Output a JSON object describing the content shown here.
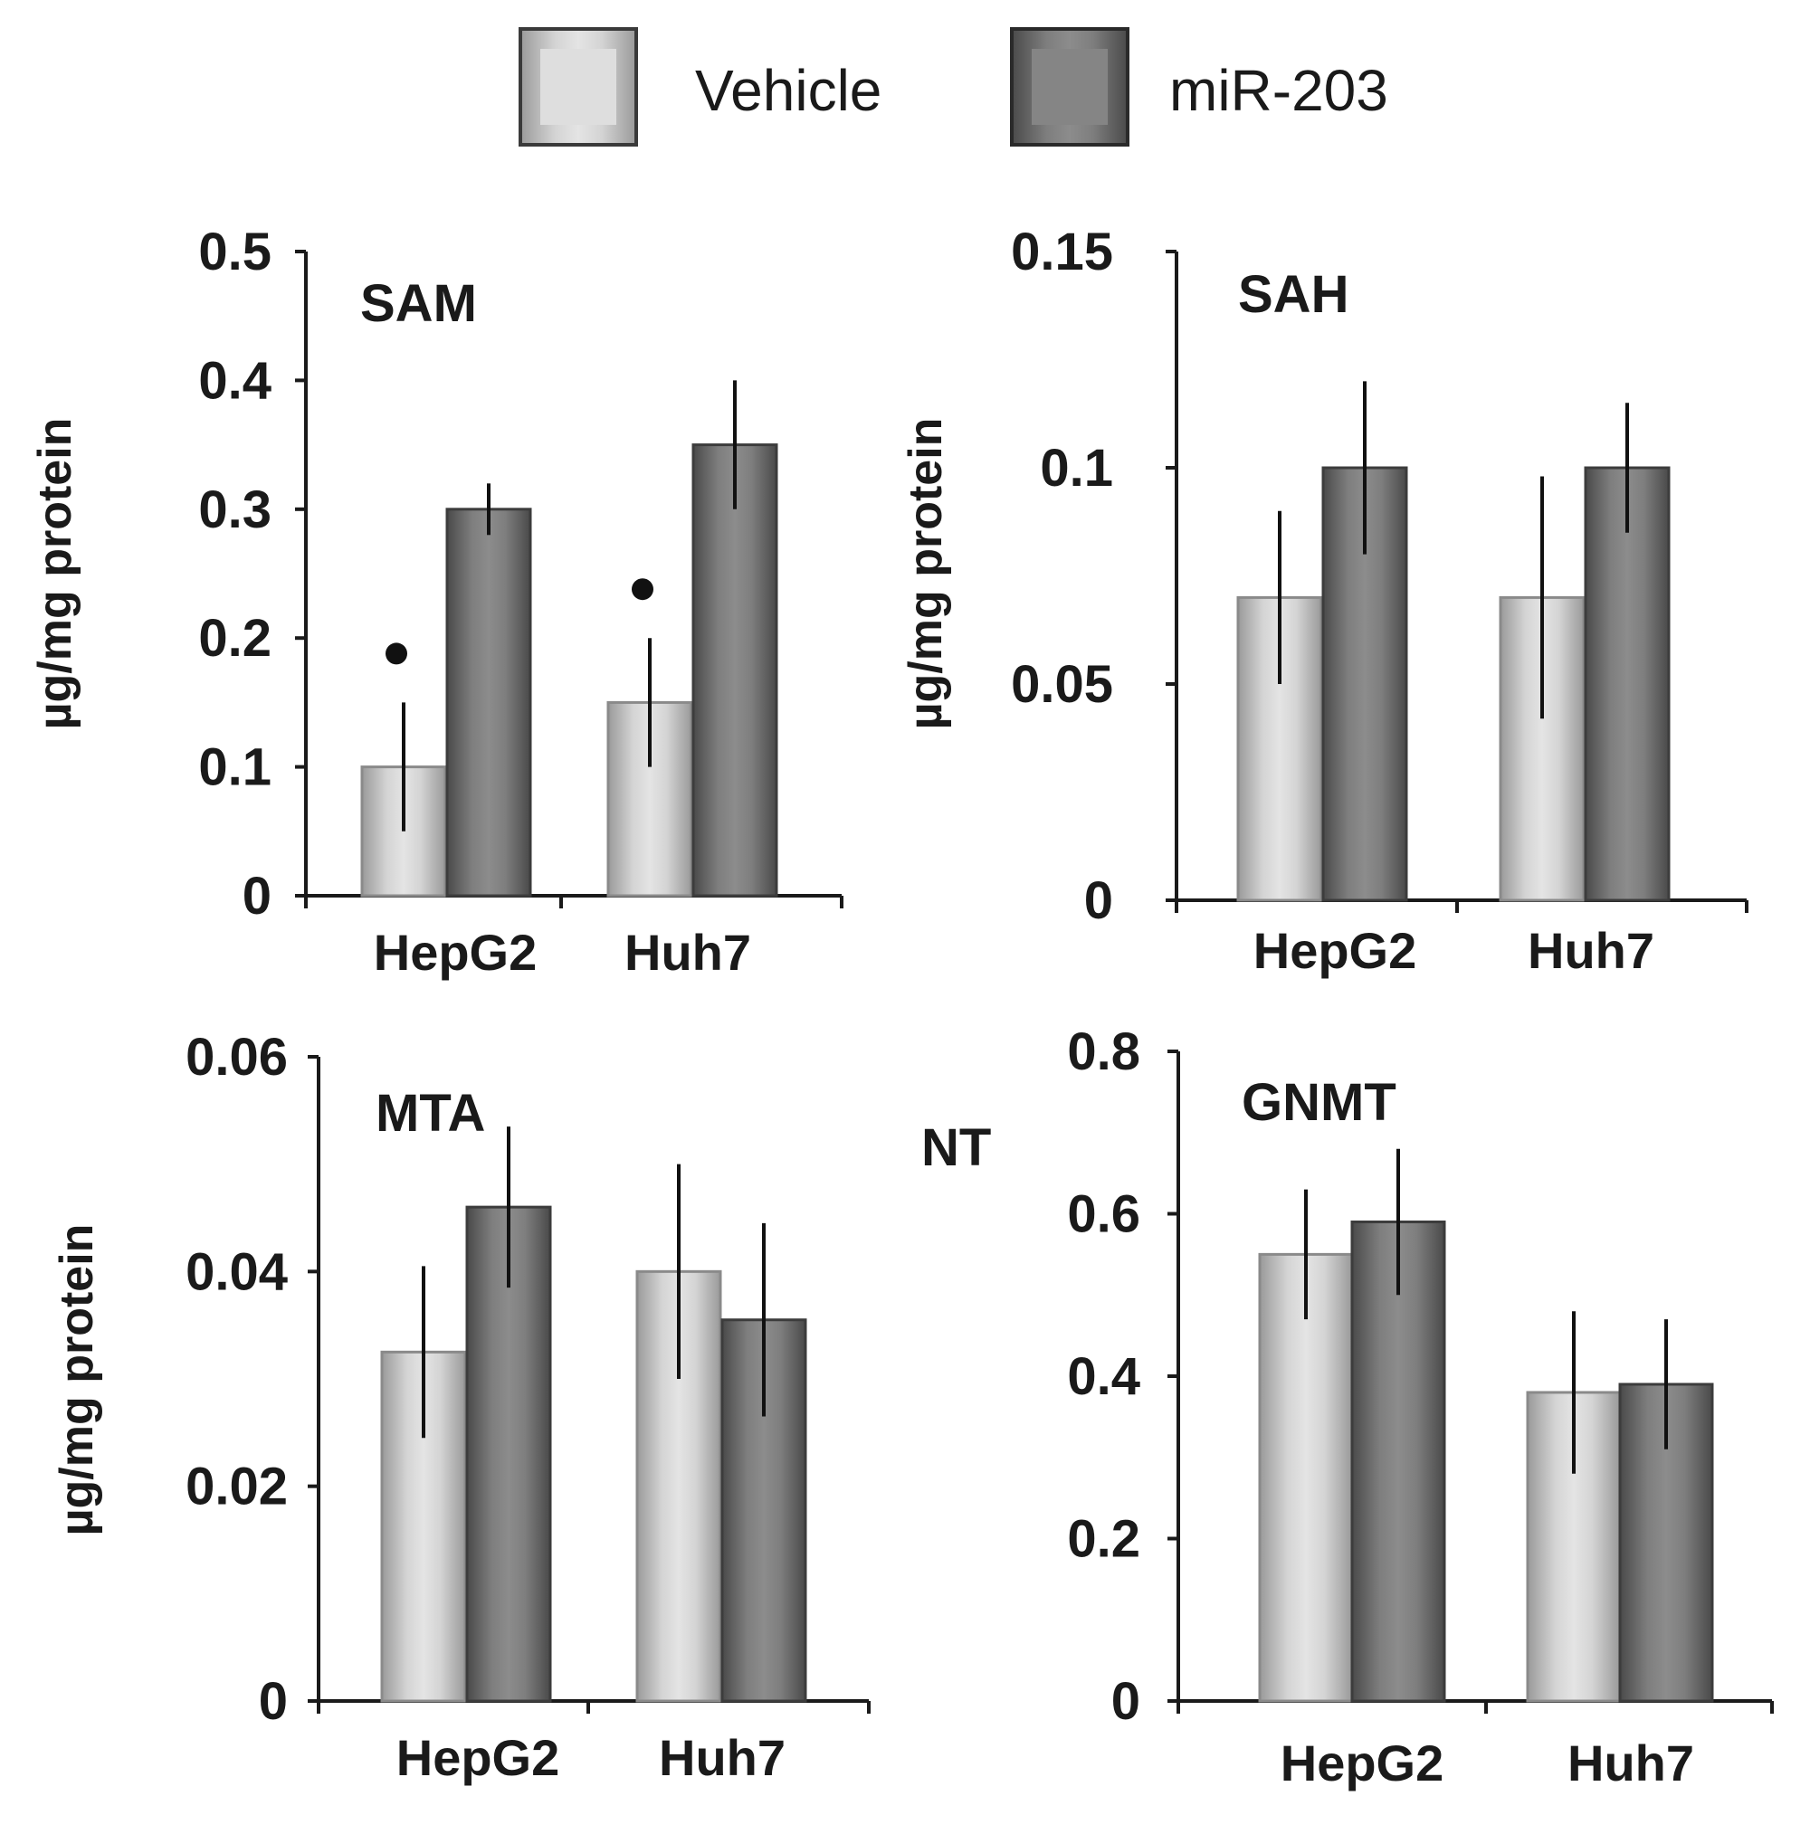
{
  "legend": {
    "items": [
      {
        "label": "Vehicle",
        "color": "#c8c8c8"
      },
      {
        "label": "miR-203",
        "color": "#7a7a7a"
      }
    ]
  },
  "colors": {
    "vehicle": "#c8c8c8",
    "mir203": "#7a7a7a",
    "axis": "#1a1a1a",
    "marker": "#111111"
  },
  "chart_data": [
    {
      "type": "bar",
      "title": "SAM",
      "ylabel": "µg/mg protein",
      "categories": [
        "HepG2",
        "Huh7"
      ],
      "ylim": [
        0,
        0.5
      ],
      "yticks": [
        "0",
        "0.1",
        "0.2",
        "0.3",
        "0.4",
        "0.5"
      ],
      "series": [
        {
          "name": "Vehicle",
          "values": [
            0.1,
            0.15
          ],
          "errors": [
            0.05,
            0.05
          ]
        },
        {
          "name": "miR-203",
          "values": [
            0.3,
            0.35
          ],
          "errors": [
            0.02,
            0.05
          ]
        }
      ],
      "significance_markers": [
        {
          "category": "HepG2",
          "series": "Vehicle",
          "symbol": "•"
        },
        {
          "category": "Huh7",
          "series": "Vehicle",
          "symbol": "•"
        }
      ]
    },
    {
      "type": "bar",
      "title": "SAH",
      "ylabel": "µg/mg protein",
      "categories": [
        "HepG2",
        "Huh7"
      ],
      "ylim": [
        0,
        0.15
      ],
      "yticks": [
        "0",
        "0.05",
        "0.1",
        "0.15"
      ],
      "series": [
        {
          "name": "Vehicle",
          "values": [
            0.07,
            0.07
          ],
          "errors": [
            0.02,
            0.028
          ]
        },
        {
          "name": "miR-203",
          "values": [
            0.1,
            0.1
          ],
          "errors": [
            0.02,
            0.015
          ]
        }
      ]
    },
    {
      "type": "bar",
      "title": "MTA",
      "ylabel": "µg/mg protein",
      "categories": [
        "HepG2",
        "Huh7"
      ],
      "ylim": [
        0,
        0.06
      ],
      "yticks": [
        "0",
        "0.02",
        "0.04",
        "0.06"
      ],
      "series": [
        {
          "name": "Vehicle",
          "values": [
            0.0325,
            0.04
          ],
          "errors": [
            0.008,
            0.01
          ]
        },
        {
          "name": "miR-203",
          "values": [
            0.046,
            0.0355
          ],
          "errors": [
            0.0075,
            0.009
          ]
        }
      ]
    },
    {
      "type": "bar",
      "title": "GNMT",
      "ylabel": "NT",
      "categories": [
        "HepG2",
        "Huh7"
      ],
      "ylim": [
        0,
        0.8
      ],
      "yticks": [
        "0",
        "0.2",
        "0.4",
        "0.6",
        "0.8"
      ],
      "series": [
        {
          "name": "Vehicle",
          "values": [
            0.55,
            0.38
          ],
          "errors": [
            0.08,
            0.1
          ]
        },
        {
          "name": "miR-203",
          "values": [
            0.59,
            0.39
          ],
          "errors": [
            0.09,
            0.08
          ]
        }
      ]
    }
  ]
}
